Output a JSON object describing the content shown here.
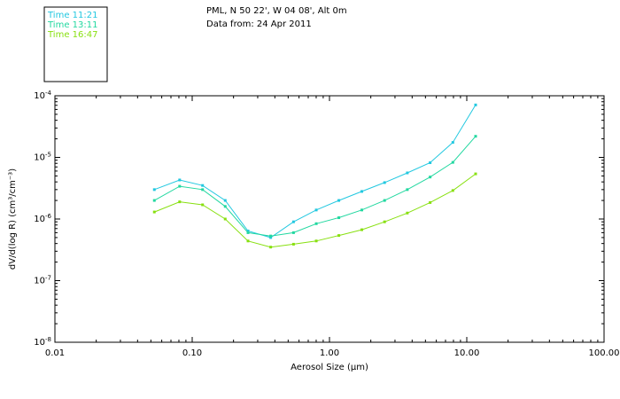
{
  "chart_data": {
    "type": "line",
    "title": "PML, N 50 22', W 04 08', Alt 0m",
    "subtitle": "Data from: 24 Apr 2011",
    "xlabel": "Aerosol Size (µm)",
    "ylabel": "dV/d(log R) (cm³/cm⁻³)",
    "xscale": "log",
    "yscale": "log",
    "xlim": [
      0.01,
      100
    ],
    "ylim": [
      1e-08,
      0.0001
    ],
    "x_tick_labels": [
      "0.01",
      "0.10",
      "1.00",
      "10.00",
      "100.00"
    ],
    "y_tick_labels": [
      {
        "base": "10",
        "exp": "-4"
      },
      {
        "base": "10",
        "exp": "-5"
      },
      {
        "base": "10",
        "exp": "-6"
      },
      {
        "base": "10",
        "exp": "-7"
      },
      {
        "base": "10",
        "exp": "-8"
      }
    ],
    "legend": {
      "position": "top-left-outside",
      "entries": [
        {
          "label": "Time 11:21",
          "color": "#22c8e0"
        },
        {
          "label": "Time 13:11",
          "color": "#22d8a0"
        },
        {
          "label": "Time 16:47",
          "color": "#88e010"
        }
      ]
    },
    "x": [
      0.053,
      0.081,
      0.119,
      0.174,
      0.255,
      0.373,
      0.547,
      0.801,
      1.17,
      1.72,
      2.52,
      3.69,
      5.41,
      7.92,
      11.6
    ],
    "series": [
      {
        "name": "Time 11:21",
        "color": "#22c8e0",
        "values": [
          3e-06,
          4.3e-06,
          3.5e-06,
          2e-06,
          6.4e-07,
          5e-07,
          9e-07,
          1.4e-06,
          2e-06,
          2.8e-06,
          3.9e-06,
          5.6e-06,
          8.2e-06,
          1.75e-05,
          7.1e-05
        ]
      },
      {
        "name": "Time 13:11",
        "color": "#22d8a0",
        "values": [
          2e-06,
          3.4e-06,
          3e-06,
          1.6e-06,
          6e-07,
          5.3e-07,
          6e-07,
          8.4e-07,
          1.05e-06,
          1.4e-06,
          2e-06,
          3e-06,
          4.8e-06,
          8.3e-06,
          2.2e-05
        ]
      },
      {
        "name": "Time 16:47",
        "color": "#88e010",
        "values": [
          1.3e-06,
          1.9e-06,
          1.7e-06,
          1e-06,
          4.4e-07,
          3.5e-07,
          3.9e-07,
          4.4e-07,
          5.4e-07,
          6.7e-07,
          9e-07,
          1.25e-06,
          1.85e-06,
          2.9e-06,
          5.4e-06
        ]
      }
    ]
  }
}
